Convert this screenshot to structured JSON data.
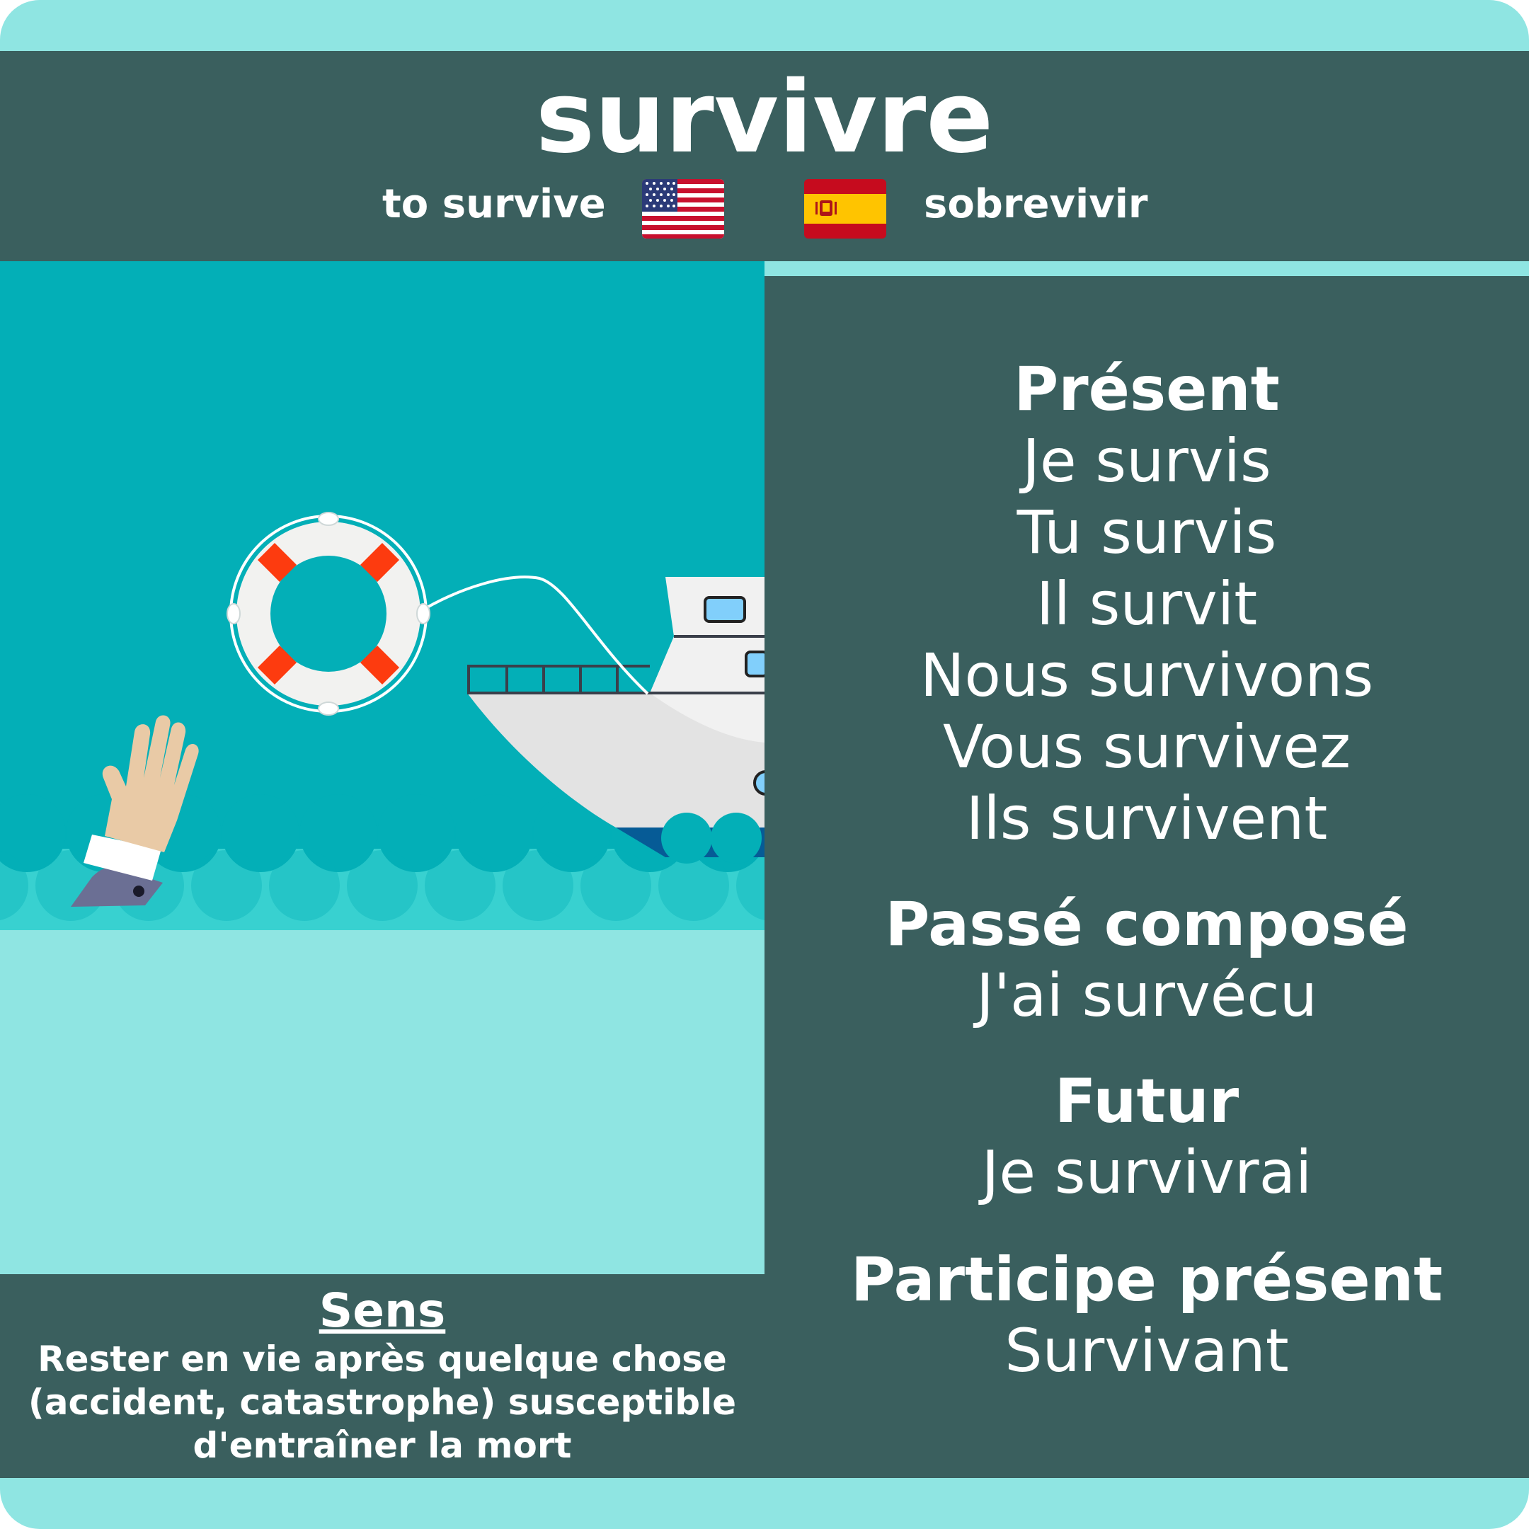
{
  "header": {
    "verb": "survivre",
    "translation_en": "to survive",
    "translation_es": "sobrevivir",
    "flag_en_icon": "us-flag-icon",
    "flag_es_icon": "spain-flag-icon"
  },
  "conjugation": {
    "present": {
      "title": "Présent",
      "forms": [
        "Je survis",
        "Tu survis",
        "Il survit",
        "Nous survivons",
        "Vous survivez",
        "Ils survivent"
      ]
    },
    "passe_compose": {
      "title": "Passé composé",
      "form": "J'ai survécu"
    },
    "futur": {
      "title": "Futur",
      "form": "Je survivrai"
    },
    "participe_present": {
      "title": "Participe présent",
      "form": "Survivant"
    }
  },
  "sens": {
    "title": "Sens",
    "lines": [
      "Rester en vie après quelque chose",
      "(accident, catastrophe) susceptible",
      "d'entraîner la mort"
    ]
  },
  "illustration": {
    "icons": [
      "lifebuoy-icon",
      "boat-icon",
      "drowning-hand-icon",
      "waves-icon"
    ]
  },
  "colors": {
    "background": "#8fe5e2",
    "panel": "#3a5f5e",
    "sky": "#03afb7",
    "wave": "#38d1d0",
    "lifebuoy_stripe": "#fd3b0f"
  }
}
